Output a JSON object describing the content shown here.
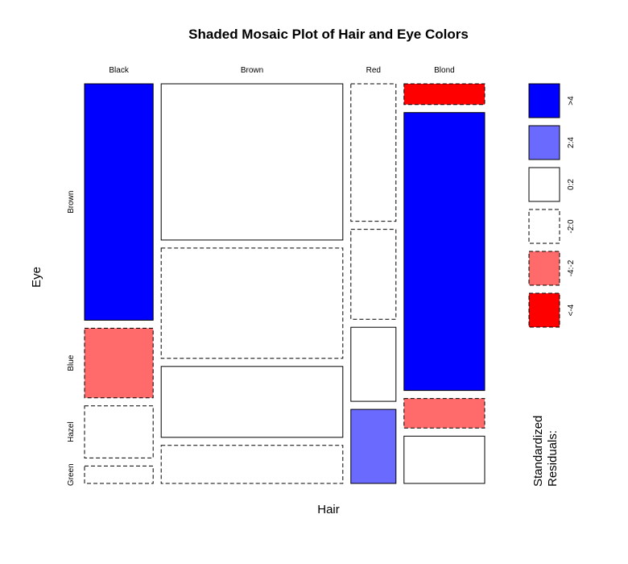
{
  "chart_data": {
    "type": "mosaic",
    "title": "Shaded Mosaic Plot of Hair and Eye Colors",
    "xlabel": "Hair",
    "ylabel": "Eye",
    "hair": [
      "Black",
      "Brown",
      "Red",
      "Blond"
    ],
    "eye": [
      "Brown",
      "Blue",
      "Hazel",
      "Green"
    ],
    "counts": [
      [
        68,
        20,
        15,
        5
      ],
      [
        119,
        84,
        54,
        29
      ],
      [
        26,
        17,
        14,
        14
      ],
      [
        7,
        94,
        10,
        16
      ]
    ],
    "residual_class": [
      [
        ">4",
        "-4:-2",
        "-2:0",
        "-2:0"
      ],
      [
        "0:2",
        "-2:0",
        "0:2",
        "-2:0"
      ],
      [
        "-2:0",
        "-2:0",
        "0:2",
        "2:4"
      ],
      [
        "<-4",
        ">4",
        "-4:-2",
        "0:2"
      ]
    ],
    "legend": {
      "title": "Standardized Residuals:",
      "placement": "right",
      "items": [
        {
          "label": ">4",
          "fill": "#0000ff",
          "dashed": false
        },
        {
          "label": "2:4",
          "fill": "#6a6aff",
          "dashed": false
        },
        {
          "label": "0:2",
          "fill": "#ffffff",
          "dashed": false
        },
        {
          "label": "-2:0",
          "fill": "#ffffff",
          "dashed": true
        },
        {
          "label": "-4:-2",
          "fill": "#ff6a6a",
          "dashed": true
        },
        {
          "label": "<-4",
          "fill": "#ff0000",
          "dashed": true
        }
      ]
    }
  }
}
